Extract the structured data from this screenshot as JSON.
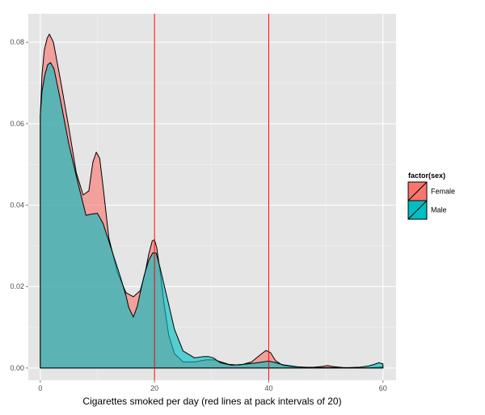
{
  "chart_data": {
    "type": "area",
    "title": "",
    "xlabel": "Cigarettes smoked per day (red lines at pack intervals of 20)",
    "ylabel": "",
    "xlim": [
      -2.1,
      62.3
    ],
    "ylim": [
      -0.003,
      0.087
    ],
    "x_ticks": [
      0,
      20,
      40,
      60
    ],
    "x_tick_labels": [
      "0",
      "20",
      "40",
      "60"
    ],
    "y_ticks": [
      0.0,
      0.02,
      0.04,
      0.06,
      0.08
    ],
    "y_tick_labels": [
      "0.00",
      "0.02",
      "0.04",
      "0.06",
      "0.08"
    ],
    "grid": true,
    "background": "#e5e5e5",
    "vlines": [
      20,
      40
    ],
    "vline_color": "#ff0000",
    "legend": {
      "title": "factor(sex)",
      "position": "right"
    },
    "series": [
      {
        "name": "Female",
        "color": "#f8766d",
        "x": [
          0,
          0.3,
          0.7,
          1.2,
          1.6,
          2.3,
          3.5,
          5,
          6.3,
          7.5,
          8.5,
          9.2,
          9.8,
          10.4,
          11,
          12,
          13.5,
          15,
          16.3,
          17.5,
          18.3,
          19,
          19.6,
          20,
          20.4,
          21,
          21.7,
          22.5,
          23.5,
          25,
          27,
          29,
          30.5,
          33,
          35,
          37,
          38.5,
          39.5,
          40.3,
          41.2,
          42.5,
          44,
          46,
          48,
          49.5,
          50.3,
          51,
          53,
          55,
          56.5,
          58,
          59.3,
          60
        ],
        "y": [
          0.062,
          0.072,
          0.078,
          0.081,
          0.082,
          0.08,
          0.071,
          0.059,
          0.048,
          0.0425,
          0.0435,
          0.0505,
          0.053,
          0.0515,
          0.0445,
          0.032,
          0.0235,
          0.0185,
          0.0175,
          0.019,
          0.023,
          0.028,
          0.0312,
          0.0315,
          0.0295,
          0.0235,
          0.0155,
          0.008,
          0.0035,
          0.0015,
          0.0015,
          0.002,
          0.002,
          0.0009,
          0.0007,
          0.0015,
          0.0032,
          0.0043,
          0.0038,
          0.0018,
          0.0006,
          0.0003,
          0.0001,
          0.0002,
          0.0004,
          0.0006,
          0.0004,
          0.0001,
          0.0,
          0.0,
          0.0001,
          0.0002,
          0.0003
        ]
      },
      {
        "name": "Male",
        "color": "#00bfc4",
        "x": [
          0,
          0.3,
          0.8,
          1.3,
          1.8,
          2.4,
          3.5,
          5,
          6.5,
          8,
          9,
          10,
          11,
          12.5,
          14,
          15,
          15.5,
          16.3,
          17,
          17.5,
          18.2,
          19,
          19.7,
          20.3,
          21,
          22,
          23.5,
          25,
          27,
          28.5,
          29.5,
          30.3,
          31.5,
          33.5,
          35.5,
          37.5,
          39,
          40,
          41,
          42.5,
          45,
          48,
          51,
          54,
          56,
          57.5,
          58.5,
          59.3,
          60
        ],
        "y": [
          0.062,
          0.068,
          0.072,
          0.0745,
          0.075,
          0.0735,
          0.066,
          0.055,
          0.046,
          0.0375,
          0.0378,
          0.038,
          0.0355,
          0.029,
          0.0225,
          0.0178,
          0.0148,
          0.0125,
          0.0152,
          0.0185,
          0.0228,
          0.0265,
          0.0283,
          0.0282,
          0.0245,
          0.0185,
          0.0095,
          0.0042,
          0.0025,
          0.0028,
          0.0028,
          0.0025,
          0.0013,
          0.0007,
          0.0009,
          0.0012,
          0.0015,
          0.0017,
          0.0014,
          0.0008,
          0.0003,
          0.0001,
          0.0001,
          0.0001,
          0.0002,
          0.0005,
          0.0009,
          0.0013,
          0.001
        ]
      }
    ]
  }
}
